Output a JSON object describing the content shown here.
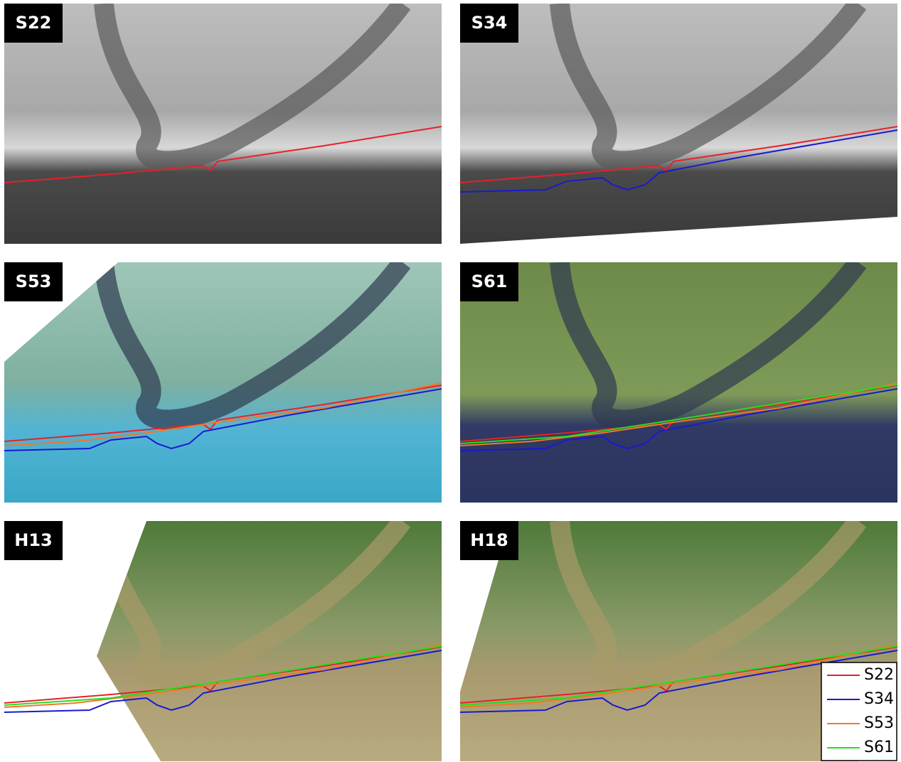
{
  "panels": [
    {
      "label": "S22"
    },
    {
      "label": "S34"
    },
    {
      "label": "S53"
    },
    {
      "label": "S61"
    },
    {
      "label": "H13"
    },
    {
      "label": "H18"
    }
  ],
  "legend": [
    {
      "name": "S22",
      "color": "#e8202a"
    },
    {
      "name": "S34",
      "color": "#1a1ad0"
    },
    {
      "name": "S53",
      "color": "#f07828"
    },
    {
      "name": "S61",
      "color": "#20e020"
    }
  ]
}
